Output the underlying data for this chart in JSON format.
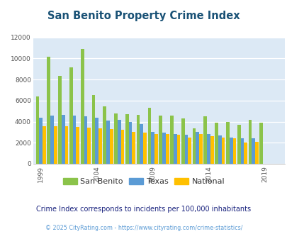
{
  "title": "San Benito Property Crime Index",
  "title_color": "#1a5276",
  "subtitle": "Crime Index corresponds to incidents per 100,000 inhabitants",
  "footer": "© 2025 CityRating.com - https://www.cityrating.com/crime-statistics/",
  "years": [
    1999,
    2000,
    2001,
    2002,
    2003,
    2004,
    2005,
    2006,
    2007,
    2008,
    2009,
    2010,
    2011,
    2012,
    2013,
    2014,
    2015,
    2016,
    2017,
    2018,
    2019,
    2020
  ],
  "san_benito": [
    6400,
    10200,
    8350,
    9150,
    10900,
    6550,
    5450,
    4750,
    4700,
    4650,
    5300,
    4600,
    4600,
    4300,
    3400,
    4500,
    3900,
    4000,
    3700,
    4200,
    3900,
    0
  ],
  "texas": [
    4400,
    4550,
    4650,
    4600,
    4500,
    4350,
    4100,
    4150,
    4000,
    3800,
    3000,
    2950,
    2800,
    2750,
    3000,
    2800,
    2700,
    2500,
    2400,
    2400,
    0,
    0
  ],
  "national": [
    3600,
    3600,
    3550,
    3500,
    3450,
    3400,
    3300,
    3250,
    3000,
    2950,
    2850,
    2800,
    2750,
    2500,
    2800,
    2600,
    2500,
    2450,
    2050,
    2100,
    0,
    0
  ],
  "san_benito_color": "#8bc34a",
  "texas_color": "#5b9bd5",
  "national_color": "#ffc000",
  "plot_bg": "#dce9f5",
  "ylim": [
    0,
    12000
  ],
  "yticks": [
    0,
    2000,
    4000,
    6000,
    8000,
    10000,
    12000
  ],
  "xtick_labels": [
    "1999",
    "2004",
    "2009",
    "2014",
    "2019"
  ],
  "xtick_positions": [
    1999,
    2004,
    2009,
    2014,
    2019
  ]
}
